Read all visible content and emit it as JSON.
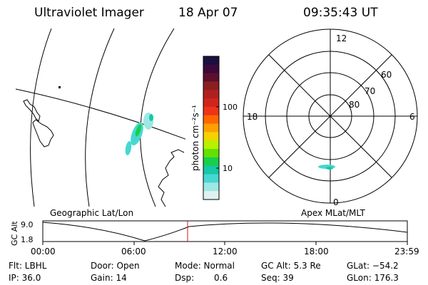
{
  "header": {
    "instrument": "Ultraviolet Imager",
    "date": "18 Apr 07",
    "time": "09:35:43 UT"
  },
  "colorbar": {
    "unit_label": "photon cm⁻²s⁻¹",
    "ticks": [
      "100",
      "10"
    ],
    "colors": [
      "#1b1040",
      "#3a0a3a",
      "#5e0f2e",
      "#8b1f1f",
      "#b02020",
      "#d0251c",
      "#ee3318",
      "#ff6600",
      "#ffa000",
      "#f2d200",
      "#b8f000",
      "#62e000",
      "#16d04a",
      "#14c8a8",
      "#46d8d0",
      "#9ee8e4",
      "#dff2f2"
    ]
  },
  "map_panels": {
    "left_label": "Geographic Lat/Lon",
    "right_label": "Apex  MLat/MLT"
  },
  "polar_plot": {
    "mlt_labels": {
      "top": "12",
      "bottom": "0",
      "left": "18",
      "right": "6"
    },
    "lat_labels": [
      "60",
      "70",
      "80"
    ]
  },
  "altitude_plot": {
    "ylabel": "GC Alt",
    "ytick_top": "9.0",
    "ytick_bottom": "1.8",
    "xticks": [
      "00:00",
      "06:00",
      "12:00",
      "18:00",
      "23:59"
    ]
  },
  "status": {
    "filter": "Flt: LBHL",
    "ip": "IP: 36.0",
    "door": "Door: Open",
    "gain": "Gain: 14",
    "mode": "Mode: Normal",
    "dsp_label": "Dsp:",
    "dsp_value": "0.6",
    "gc_alt": "GC Alt: 5.3 Re",
    "seq": "Seq: 39",
    "glat": "GLat: −54.2",
    "glon": "GLon: 176.3"
  }
}
